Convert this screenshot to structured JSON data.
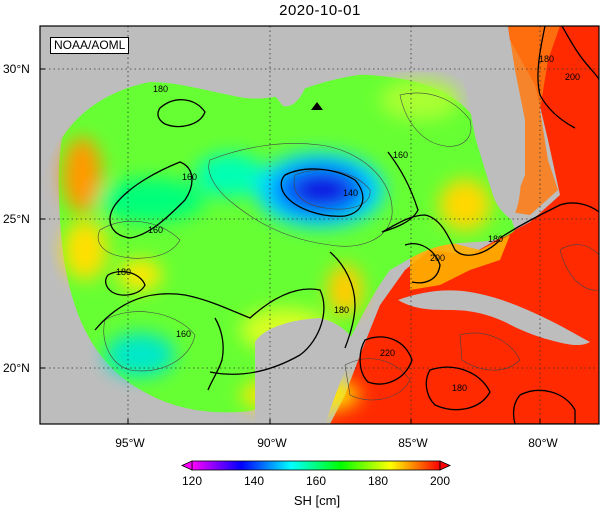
{
  "title": "2020-10-01",
  "credit": "NOAA/AOML",
  "lat_ticks": [
    "30°N",
    "25°N",
    "20°N"
  ],
  "lon_ticks": [
    "95°W",
    "90°W",
    "85°W",
    "80°W"
  ],
  "contour_labels": [
    "180",
    "160",
    "160",
    "140",
    "160",
    "180",
    "180",
    "160",
    "180",
    "200",
    "180",
    "200",
    "220",
    "180"
  ],
  "colorbar": {
    "label": "SH [cm]",
    "ticks": [
      "120",
      "140",
      "160",
      "180",
      "200"
    ],
    "stops": [
      "#ff00ff",
      "#0000ff",
      "#00ffff",
      "#00ff00",
      "#ffff00",
      "#ff0000"
    ]
  },
  "colors": {
    "land": "#bdbdbd",
    "loop_current": "#ff2200",
    "gulf_base": "#66ff33"
  },
  "markers": [
    {
      "name": "buoy",
      "shape": "triangle"
    }
  ]
}
